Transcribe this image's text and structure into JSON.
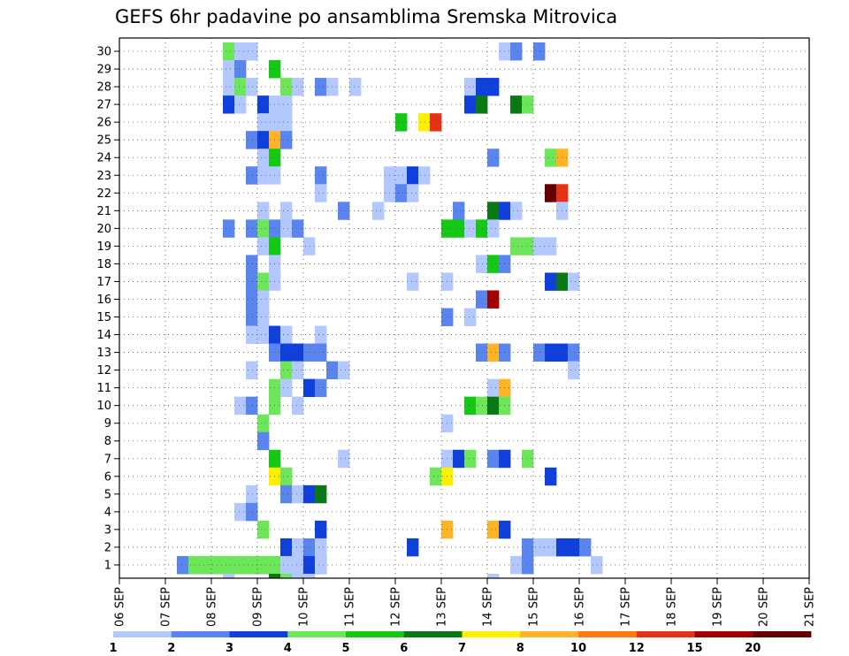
{
  "chart_data": {
    "type": "heatmap",
    "title": "GEFS 6hr padavine po ansamblima Sremska Mitrovica",
    "y_ticks": [
      "1",
      "2",
      "3",
      "4",
      "5",
      "6",
      "7",
      "8",
      "9",
      "10",
      "11",
      "12",
      "13",
      "14",
      "15",
      "16",
      "17",
      "18",
      "19",
      "20",
      "21",
      "22",
      "23",
      "24",
      "25",
      "26",
      "27",
      "28",
      "29",
      "30"
    ],
    "x_ticks": [
      "06 SEP",
      "07 SEP",
      "08 SEP",
      "09 SEP",
      "10 SEP",
      "11 SEP",
      "12 SEP",
      "13 SEP",
      "14 SEP",
      "15 SEP",
      "16 SEP",
      "17 SEP",
      "18 SEP",
      "19 SEP",
      "20 SEP",
      "21 SEP"
    ],
    "x_steps_per_day": 4,
    "grid": true,
    "colorbar": {
      "labels": [
        "1",
        "2",
        "3",
        "4",
        "5",
        "6",
        "7",
        "8",
        "10",
        "12",
        "15",
        "20"
      ],
      "colors": [
        "#b3c8ff",
        "#5a85ee",
        "#1040dc",
        "#6ee65a",
        "#14c814",
        "#0a7814",
        "#fff000",
        "#ffb428",
        "#ff7814",
        "#e63214",
        "#a00000",
        "#640000"
      ]
    },
    "cells": [
      [
        1,
        5,
        10,
        2
      ],
      [
        1,
        5,
        13,
        2
      ],
      [
        1,
        6,
        11,
        4
      ],
      [
        30,
        9,
        1,
        1
      ],
      [
        30,
        9,
        3,
        4
      ],
      [
        30,
        10,
        2,
        1
      ],
      [
        30,
        33,
        1,
        1
      ],
      [
        30,
        34,
        1,
        2
      ],
      [
        30,
        36,
        1,
        2
      ],
      [
        29,
        9,
        1,
        1
      ],
      [
        29,
        10,
        1,
        2
      ],
      [
        29,
        13,
        1,
        5
      ],
      [
        28,
        9,
        1,
        1
      ],
      [
        28,
        10,
        1,
        4
      ],
      [
        28,
        11,
        1,
        1
      ],
      [
        28,
        14,
        1,
        4
      ],
      [
        28,
        15,
        1,
        1
      ],
      [
        28,
        17,
        1,
        2
      ],
      [
        28,
        18,
        1,
        1
      ],
      [
        28,
        20,
        1,
        1
      ],
      [
        28,
        30,
        1,
        1
      ],
      [
        28,
        31,
        2,
        3
      ],
      [
        27,
        9,
        1,
        3
      ],
      [
        27,
        10,
        1,
        1
      ],
      [
        27,
        12,
        1,
        3
      ],
      [
        27,
        13,
        2,
        1
      ],
      [
        27,
        30,
        1,
        3
      ],
      [
        27,
        31,
        1,
        6
      ],
      [
        27,
        34,
        1,
        6
      ],
      [
        27,
        35,
        1,
        4
      ],
      [
        26,
        12,
        1,
        1
      ],
      [
        26,
        13,
        2,
        1
      ],
      [
        26,
        24,
        1,
        5
      ],
      [
        26,
        26,
        1,
        7
      ],
      [
        26,
        27,
        1,
        10
      ],
      [
        25,
        11,
        1,
        2
      ],
      [
        25,
        12,
        1,
        3
      ],
      [
        25,
        13,
        1,
        8
      ],
      [
        25,
        14,
        1,
        2
      ],
      [
        24,
        12,
        1,
        1
      ],
      [
        24,
        13,
        1,
        5
      ],
      [
        24,
        32,
        1,
        2
      ],
      [
        24,
        37,
        1,
        4
      ],
      [
        24,
        38,
        1,
        8
      ],
      [
        23,
        11,
        1,
        2
      ],
      [
        23,
        12,
        1,
        1
      ],
      [
        23,
        13,
        1,
        1
      ],
      [
        23,
        17,
        1,
        2
      ],
      [
        23,
        23,
        1,
        1
      ],
      [
        23,
        24,
        1,
        1
      ],
      [
        23,
        25,
        1,
        3
      ],
      [
        23,
        26,
        1,
        1
      ],
      [
        22,
        17,
        1,
        1
      ],
      [
        22,
        23,
        1,
        1
      ],
      [
        22,
        24,
        1,
        2
      ],
      [
        22,
        25,
        1,
        1
      ],
      [
        22,
        37,
        1,
        12
      ],
      [
        22,
        38,
        1,
        10
      ],
      [
        21,
        12,
        1,
        1
      ],
      [
        21,
        14,
        1,
        1
      ],
      [
        21,
        19,
        1,
        2
      ],
      [
        21,
        22,
        1,
        1
      ],
      [
        21,
        29,
        1,
        2
      ],
      [
        21,
        32,
        1,
        6
      ],
      [
        21,
        33,
        1,
        3
      ],
      [
        21,
        34,
        1,
        1
      ],
      [
        21,
        38,
        1,
        1
      ],
      [
        20,
        9,
        1,
        2
      ],
      [
        20,
        11,
        1,
        2
      ],
      [
        20,
        12,
        1,
        4
      ],
      [
        20,
        13,
        1,
        2
      ],
      [
        20,
        14,
        1,
        1
      ],
      [
        20,
        15,
        1,
        2
      ],
      [
        20,
        28,
        2,
        5
      ],
      [
        20,
        30,
        1,
        1
      ],
      [
        20,
        31,
        1,
        5
      ],
      [
        20,
        32,
        1,
        1
      ],
      [
        19,
        12,
        1,
        1
      ],
      [
        19,
        13,
        1,
        5
      ],
      [
        19,
        16,
        1,
        1
      ],
      [
        19,
        34,
        2,
        4
      ],
      [
        19,
        36,
        1,
        1
      ],
      [
        19,
        37,
        1,
        1
      ],
      [
        18,
        11,
        1,
        2
      ],
      [
        18,
        13,
        1,
        1
      ],
      [
        18,
        31,
        1,
        1
      ],
      [
        18,
        32,
        1,
        5
      ],
      [
        18,
        33,
        1,
        2
      ],
      [
        17,
        11,
        1,
        2
      ],
      [
        17,
        12,
        1,
        4
      ],
      [
        17,
        13,
        1,
        1
      ],
      [
        17,
        25,
        1,
        1
      ],
      [
        17,
        28,
        1,
        1
      ],
      [
        17,
        37,
        1,
        3
      ],
      [
        17,
        38,
        1,
        6
      ],
      [
        17,
        39,
        1,
        1
      ],
      [
        16,
        11,
        1,
        2
      ],
      [
        16,
        12,
        1,
        1
      ],
      [
        16,
        31,
        1,
        2
      ],
      [
        16,
        32,
        1,
        11
      ],
      [
        15,
        11,
        1,
        2
      ],
      [
        15,
        12,
        1,
        1
      ],
      [
        15,
        28,
        1,
        2
      ],
      [
        15,
        30,
        1,
        1
      ],
      [
        14,
        11,
        2,
        1
      ],
      [
        14,
        13,
        1,
        3
      ],
      [
        14,
        14,
        1,
        1
      ],
      [
        14,
        17,
        1,
        1
      ],
      [
        13,
        13,
        1,
        2
      ],
      [
        13,
        14,
        2,
        3
      ],
      [
        13,
        16,
        2,
        2
      ],
      [
        13,
        31,
        1,
        2
      ],
      [
        13,
        32,
        1,
        8
      ],
      [
        13,
        33,
        1,
        2
      ],
      [
        13,
        36,
        1,
        2
      ],
      [
        13,
        37,
        2,
        3
      ],
      [
        13,
        39,
        1,
        2
      ],
      [
        12,
        11,
        1,
        1
      ],
      [
        12,
        14,
        1,
        4
      ],
      [
        12,
        15,
        1,
        1
      ],
      [
        12,
        18,
        1,
        2
      ],
      [
        12,
        19,
        1,
        1
      ],
      [
        12,
        39,
        1,
        1
      ],
      [
        11,
        13,
        1,
        4
      ],
      [
        11,
        14,
        1,
        1
      ],
      [
        11,
        16,
        1,
        3
      ],
      [
        11,
        17,
        1,
        2
      ],
      [
        11,
        32,
        1,
        1
      ],
      [
        11,
        33,
        1,
        8
      ],
      [
        10,
        10,
        1,
        1
      ],
      [
        10,
        11,
        1,
        2
      ],
      [
        10,
        13,
        1,
        4
      ],
      [
        10,
        15,
        1,
        1
      ],
      [
        10,
        30,
        1,
        5
      ],
      [
        10,
        31,
        1,
        4
      ],
      [
        10,
        32,
        1,
        6
      ],
      [
        10,
        33,
        1,
        4
      ],
      [
        9,
        12,
        1,
        4
      ],
      [
        9,
        28,
        1,
        1
      ],
      [
        8,
        12,
        1,
        2
      ],
      [
        7,
        13,
        1,
        5
      ],
      [
        7,
        19,
        1,
        1
      ],
      [
        7,
        28,
        1,
        1
      ],
      [
        7,
        29,
        1,
        3
      ],
      [
        7,
        30,
        1,
        4
      ],
      [
        7,
        32,
        1,
        2
      ],
      [
        7,
        33,
        1,
        3
      ],
      [
        7,
        35,
        1,
        4
      ],
      [
        6,
        13,
        1,
        7
      ],
      [
        6,
        14,
        1,
        4
      ],
      [
        6,
        27,
        1,
        4
      ],
      [
        6,
        28,
        1,
        7
      ],
      [
        6,
        37,
        1,
        3
      ],
      [
        5,
        11,
        1,
        1
      ],
      [
        5,
        14,
        1,
        2
      ],
      [
        5,
        15,
        1,
        1
      ],
      [
        5,
        16,
        1,
        3
      ],
      [
        5,
        17,
        1,
        6
      ],
      [
        4,
        10,
        2,
        1
      ],
      [
        4,
        11,
        1,
        2
      ],
      [
        3,
        12,
        1,
        4
      ],
      [
        3,
        17,
        1,
        3
      ],
      [
        3,
        28,
        1,
        8
      ],
      [
        3,
        32,
        1,
        8
      ],
      [
        3,
        33,
        1,
        3
      ],
      [
        2,
        14,
        1,
        3
      ],
      [
        2,
        15,
        1,
        1
      ],
      [
        2,
        16,
        1,
        2
      ],
      [
        2,
        17,
        1,
        1
      ],
      [
        2,
        25,
        1,
        3
      ],
      [
        2,
        35,
        1,
        2
      ],
      [
        2,
        36,
        2,
        1
      ],
      [
        2,
        38,
        2,
        3
      ],
      [
        2,
        40,
        1,
        2
      ],
      [
        1,
        14,
        1,
        1
      ],
      [
        1,
        15,
        1,
        1
      ],
      [
        1,
        16,
        2,
        3
      ],
      [
        1,
        17,
        1,
        1
      ],
      [
        1,
        34,
        1,
        1
      ],
      [
        1,
        35,
        1,
        2
      ],
      [
        1,
        41,
        1,
        1
      ]
    ],
    "bottom_marks": [
      [
        9,
        1
      ],
      [
        13,
        6
      ],
      [
        14,
        4
      ],
      [
        15,
        1
      ],
      [
        16,
        1
      ],
      [
        32,
        1
      ]
    ]
  }
}
